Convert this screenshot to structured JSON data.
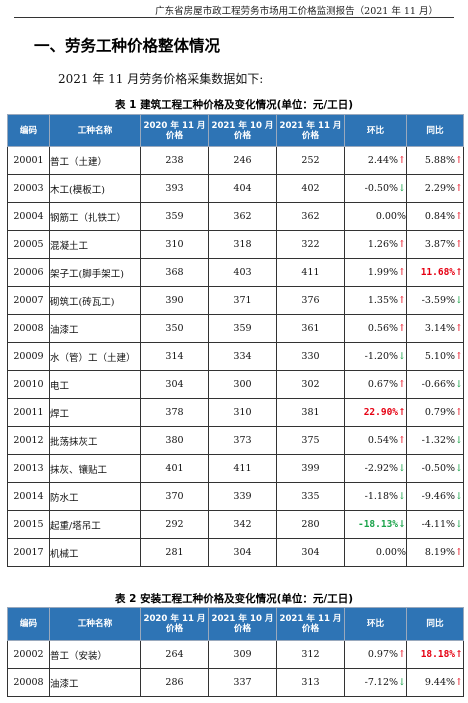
{
  "header": {
    "text": "广东省房屋市政工程劳务市场用工价格监测报告（2021 年 11 月）"
  },
  "section_title": "一、劳务工种价格整体情况",
  "intro": "2021 年 11 月劳务价格采集数据如下:",
  "table1": {
    "caption": "表 1  建筑工程工种价格及变化情况(单位：元/工日)",
    "headers": {
      "code": "编码",
      "name": "工种名称",
      "p2020": "2020 年 11 月价格",
      "p2021_10": "2021 年 10 月价格",
      "p2021_11": "2021 年 11 月价格",
      "mom": "环比",
      "yoy": "同比"
    },
    "rows": [
      {
        "code": "20001",
        "name": "普工（土建）",
        "p2020": "238",
        "p2021_10": "246",
        "p2021_11": "252",
        "mom": "2.44%",
        "mom_arrow": "↑",
        "mom_dir": "up",
        "mom_hl": false,
        "yoy": "5.88%",
        "yoy_arrow": "↑",
        "yoy_dir": "up",
        "yoy_hl": false
      },
      {
        "code": "20003",
        "name": "木工(模板工)",
        "p2020": "393",
        "p2021_10": "404",
        "p2021_11": "402",
        "mom": "-0.50%",
        "mom_arrow": "↓",
        "mom_dir": "down",
        "mom_hl": false,
        "yoy": "2.29%",
        "yoy_arrow": "↑",
        "yoy_dir": "up",
        "yoy_hl": false
      },
      {
        "code": "20004",
        "name": "钢筋工（扎铁工）",
        "p2020": "359",
        "p2021_10": "362",
        "p2021_11": "362",
        "mom": "0.00%",
        "mom_arrow": "",
        "mom_dir": "none",
        "mom_hl": false,
        "yoy": "0.84%",
        "yoy_arrow": "↑",
        "yoy_dir": "up",
        "yoy_hl": false
      },
      {
        "code": "20005",
        "name": "混凝土工",
        "p2020": "310",
        "p2021_10": "318",
        "p2021_11": "322",
        "mom": "1.26%",
        "mom_arrow": "↑",
        "mom_dir": "up",
        "mom_hl": false,
        "yoy": "3.87%",
        "yoy_arrow": "↑",
        "yoy_dir": "up",
        "yoy_hl": false
      },
      {
        "code": "20006",
        "name": "架子工(脚手架工)",
        "p2020": "368",
        "p2021_10": "403",
        "p2021_11": "411",
        "mom": "1.99%",
        "mom_arrow": "↑",
        "mom_dir": "up",
        "mom_hl": false,
        "yoy": "11.68%",
        "yoy_arrow": "↑",
        "yoy_dir": "up",
        "yoy_hl": true
      },
      {
        "code": "20007",
        "name": "砌筑工(砖瓦工)",
        "p2020": "390",
        "p2021_10": "371",
        "p2021_11": "376",
        "mom": "1.35%",
        "mom_arrow": "↑",
        "mom_dir": "up",
        "mom_hl": false,
        "yoy": "-3.59%",
        "yoy_arrow": "↓",
        "yoy_dir": "down",
        "yoy_hl": false
      },
      {
        "code": "20008",
        "name": "油漆工",
        "p2020": "350",
        "p2021_10": "359",
        "p2021_11": "361",
        "mom": "0.56%",
        "mom_arrow": "↑",
        "mom_dir": "up",
        "mom_hl": false,
        "yoy": "3.14%",
        "yoy_arrow": "↑",
        "yoy_dir": "up",
        "yoy_hl": false
      },
      {
        "code": "20009",
        "name": "水（管）工（土建）",
        "p2020": "314",
        "p2021_10": "334",
        "p2021_11": "330",
        "mom": "-1.20%",
        "mom_arrow": "↓",
        "mom_dir": "down",
        "mom_hl": false,
        "yoy": "5.10%",
        "yoy_arrow": "↑",
        "yoy_dir": "up",
        "yoy_hl": false
      },
      {
        "code": "20010",
        "name": "电工",
        "p2020": "304",
        "p2021_10": "300",
        "p2021_11": "302",
        "mom": "0.67%",
        "mom_arrow": "↑",
        "mom_dir": "up",
        "mom_hl": false,
        "yoy": "-0.66%",
        "yoy_arrow": "↓",
        "yoy_dir": "down",
        "yoy_hl": false
      },
      {
        "code": "20011",
        "name": "焊工",
        "p2020": "378",
        "p2021_10": "310",
        "p2021_11": "381",
        "mom": "22.90%",
        "mom_arrow": "↑",
        "mom_dir": "up",
        "mom_hl": true,
        "yoy": "0.79%",
        "yoy_arrow": "↑",
        "yoy_dir": "up",
        "yoy_hl": false
      },
      {
        "code": "20012",
        "name": "批荡抹灰工",
        "p2020": "380",
        "p2021_10": "373",
        "p2021_11": "375",
        "mom": "0.54%",
        "mom_arrow": "↑",
        "mom_dir": "up",
        "mom_hl": false,
        "yoy": "-1.32%",
        "yoy_arrow": "↓",
        "yoy_dir": "down",
        "yoy_hl": false
      },
      {
        "code": "20013",
        "name": "抹灰、镶贴工",
        "p2020": "401",
        "p2021_10": "411",
        "p2021_11": "399",
        "mom": "-2.92%",
        "mom_arrow": "↓",
        "mom_dir": "down",
        "mom_hl": false,
        "yoy": "-0.50%",
        "yoy_arrow": "↓",
        "yoy_dir": "down",
        "yoy_hl": false
      },
      {
        "code": "20014",
        "name": "防水工",
        "p2020": "370",
        "p2021_10": "339",
        "p2021_11": "335",
        "mom": "-1.18%",
        "mom_arrow": "↓",
        "mom_dir": "down",
        "mom_hl": false,
        "yoy": "-9.46%",
        "yoy_arrow": "↓",
        "yoy_dir": "down",
        "yoy_hl": false
      },
      {
        "code": "20015",
        "name": "起重/塔吊工",
        "p2020": "292",
        "p2021_10": "342",
        "p2021_11": "280",
        "mom": "-18.13%",
        "mom_arrow": "↓",
        "mom_dir": "down",
        "mom_hl": true,
        "yoy": "-4.11%",
        "yoy_arrow": "↓",
        "yoy_dir": "down",
        "yoy_hl": false
      },
      {
        "code": "20017",
        "name": "机械工",
        "p2020": "281",
        "p2021_10": "304",
        "p2021_11": "304",
        "mom": "0.00%",
        "mom_arrow": "",
        "mom_dir": "none",
        "mom_hl": false,
        "yoy": "8.19%",
        "yoy_arrow": "↑",
        "yoy_dir": "up",
        "yoy_hl": false
      }
    ]
  },
  "table2": {
    "caption": "表 2  安装工程工种价格及变化情况(单位：元/工日)",
    "headers": {
      "code": "编码",
      "name": "工种名称",
      "p2020": "2020 年 11 月价格",
      "p2021_10": "2021 年 10 月价格",
      "p2021_11": "2021 年 11 月价格",
      "mom": "环比",
      "yoy": "同比"
    },
    "rows": [
      {
        "code": "20002",
        "name": "普工（安装）",
        "p2020": "264",
        "p2021_10": "309",
        "p2021_11": "312",
        "mom": "0.97%",
        "mom_arrow": "↑",
        "mom_dir": "up",
        "mom_hl": false,
        "yoy": "18.18%",
        "yoy_arrow": "↑",
        "yoy_dir": "up",
        "yoy_hl": true
      },
      {
        "code": "20008",
        "name": "油漆工",
        "p2020": "286",
        "p2021_10": "337",
        "p2021_11": "313",
        "mom": "-7.12%",
        "mom_arrow": "↓",
        "mom_dir": "down",
        "mom_hl": false,
        "yoy": "9.44%",
        "yoy_arrow": "↑",
        "yoy_dir": "up",
        "yoy_hl": false
      }
    ]
  }
}
